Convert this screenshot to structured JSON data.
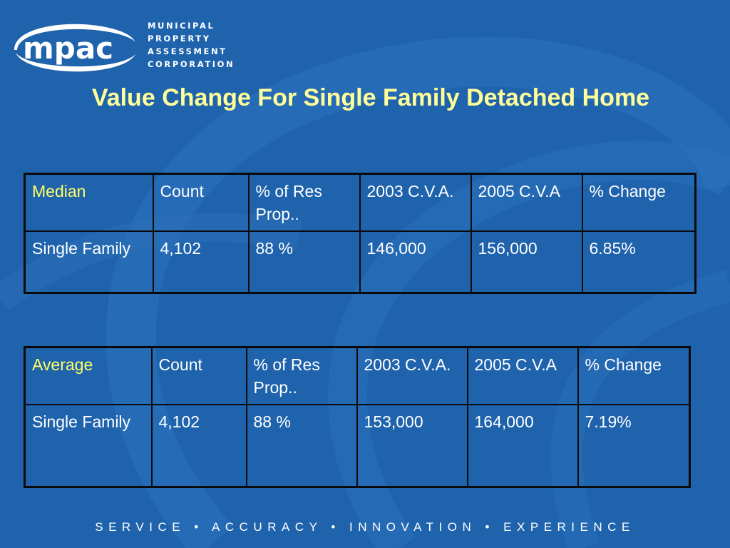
{
  "brand": {
    "logo_text": "mpac",
    "name_lines": [
      "MUNICIPAL",
      "PROPERTY",
      "ASSESSMENT",
      "CORPORATION"
    ]
  },
  "title": "Value Change For Single Family Detached Home",
  "tables": [
    {
      "headers": [
        "Median",
        "Count",
        "% of Res Prop..",
        "2003 C.V.A.",
        "2005 C.V.A",
        "% Change"
      ],
      "row": [
        "Single Family",
        "4,102",
        "88 %",
        "146,000",
        "156,000",
        "6.85%"
      ]
    },
    {
      "headers": [
        "Average",
        "Count",
        "% of Res Prop..",
        "2003 C.V.A.",
        "2005 C.V.A",
        "% Change"
      ],
      "row": [
        "Single Family",
        "4,102",
        "88 %",
        "153,000",
        "164,000",
        "7.19%"
      ]
    }
  ],
  "footer": "SERVICE • ACCURACY • INNOVATION • EXPERIENCE",
  "colors": {
    "background": "#1f63ad",
    "title": "#ffff99",
    "key_label": "#ffff66",
    "text": "#ffffff"
  }
}
